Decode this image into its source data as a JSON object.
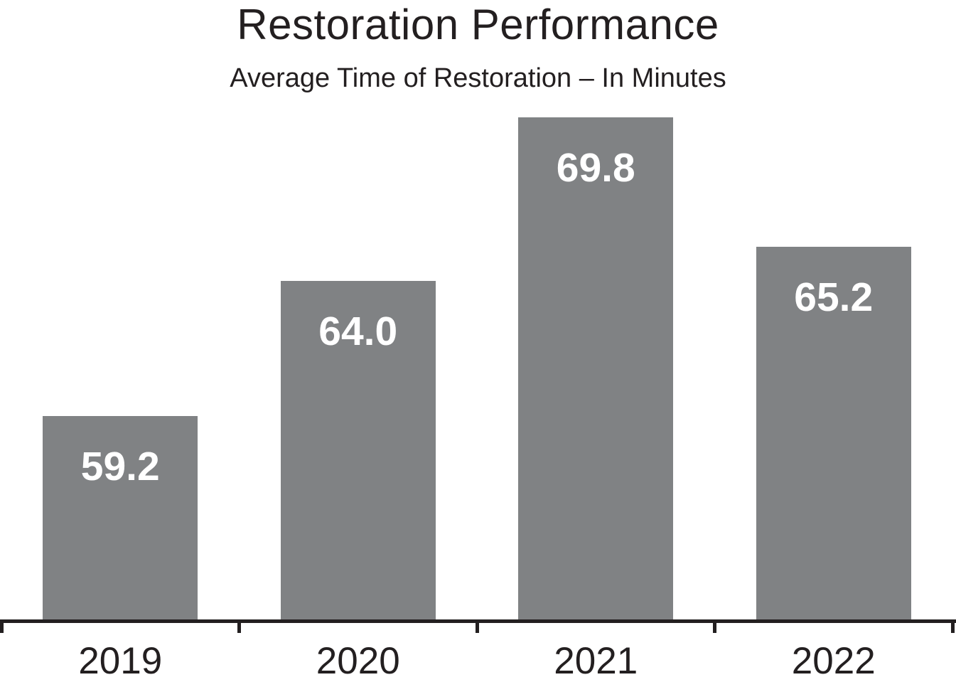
{
  "chart_data": {
    "type": "bar",
    "title": "Restoration Performance",
    "subtitle": "Average Time of Restoration – In Minutes",
    "categories": [
      "2019",
      "2020",
      "2021",
      "2022"
    ],
    "values": [
      59.2,
      64.0,
      69.8,
      65.2
    ],
    "value_labels": [
      "59.2",
      "64.0",
      "69.8",
      "65.2"
    ],
    "xlabel": "",
    "ylabel": "",
    "ylim": [
      52,
      70.5
    ],
    "grid": false,
    "legend": null,
    "orientation": "vertical",
    "value_label_position": "inside-top",
    "colors": {
      "bar": "#808284",
      "value_label": "#ffffff",
      "axis": "#231f20",
      "text": "#231f20"
    }
  }
}
